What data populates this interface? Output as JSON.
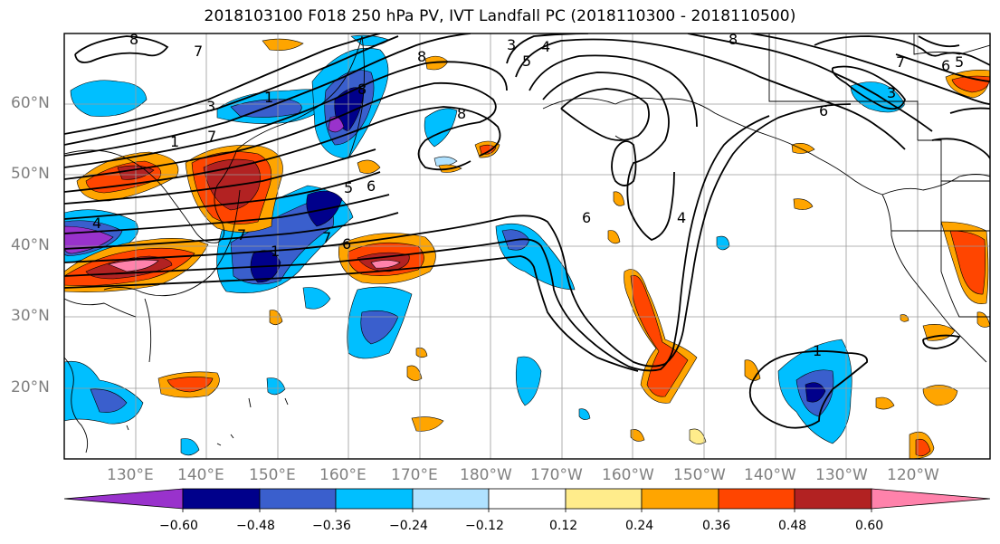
{
  "title": "2018103100 F018 250 hPa PV, IVT Landfall PC (2018110300 - 2018110500)",
  "lat_labels": [
    "60°N",
    "50°N",
    "40°N",
    "30°N",
    "20°N"
  ],
  "lon_labels": [
    "130°E",
    "140°E",
    "150°E",
    "160°E",
    "170°E",
    "180°W",
    "170°W",
    "160°W",
    "150°W",
    "140°W",
    "130°W",
    "120°W"
  ],
  "contour_labels": [
    "8",
    "7",
    "3",
    "1",
    "8",
    "3",
    "5",
    "4",
    "8",
    "8",
    "1",
    "7",
    "6",
    "5",
    "4",
    "6",
    "7",
    "1",
    "7",
    "6",
    "4",
    "6",
    "5",
    "7",
    "6",
    "3",
    "1",
    "8"
  ],
  "colorbar": {
    "tick_labels": [
      "−0.60",
      "−0.48",
      "−0.36",
      "−0.24",
      "−0.12",
      "0.12",
      "0.24",
      "0.36",
      "0.48",
      "0.60"
    ],
    "colors": [
      "#9932cc",
      "#00008b",
      "#3a5fcd",
      "#00bfff",
      "#b0e2ff",
      "#ffffff",
      "#ffec8b",
      "#ffa500",
      "#ff4500",
      "#b22222",
      "#ff82ab"
    ]
  }
}
